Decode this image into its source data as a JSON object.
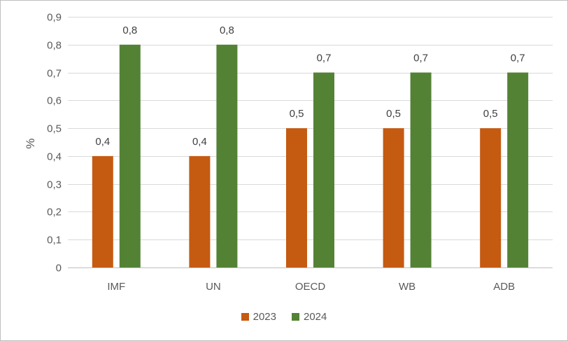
{
  "chart_data": {
    "type": "bar",
    "categories": [
      "IMF",
      "UN",
      "OECD",
      "WB",
      "ADB"
    ],
    "series": [
      {
        "name": "2023",
        "values": [
          0.4,
          0.4,
          0.5,
          0.5,
          0.5
        ],
        "color": "#C55A11"
      },
      {
        "name": "2024",
        "values": [
          0.8,
          0.8,
          0.7,
          0.7,
          0.7
        ],
        "color": "#548235"
      }
    ],
    "ylabel": "%",
    "ylim": [
      0,
      0.9
    ],
    "ytick_labels": [
      "0",
      "0,1",
      "0,2",
      "0,3",
      "0,4",
      "0,5",
      "0,6",
      "0,7",
      "0,8",
      "0,9"
    ],
    "data_labels": [
      [
        "0,4",
        "0,4",
        "0,5",
        "0,5",
        "0,5"
      ],
      [
        "0,8",
        "0,8",
        "0,7",
        "0,7",
        "0,7"
      ]
    ],
    "grid": true,
    "gridline_color": "#d9d9d9",
    "legend_position": "bottom"
  }
}
